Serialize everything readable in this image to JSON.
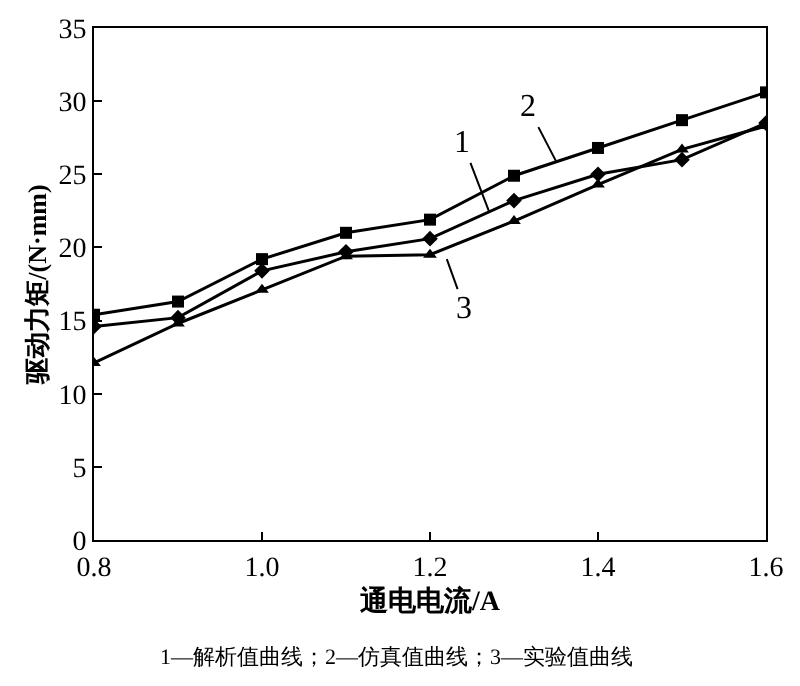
{
  "chart_data": {
    "type": "line",
    "xlabel": "通电电流/A",
    "ylabel": "驱动力矩/(N·mm)",
    "x": [
      0.8,
      0.9,
      1.0,
      1.1,
      1.2,
      1.3,
      1.4,
      1.5,
      1.6
    ],
    "series": [
      {
        "color": "#000000",
        "marker": "diamond",
        "values": [
          14.6,
          15.2,
          18.4,
          19.7,
          20.6,
          23.2,
          25.0,
          26.0,
          28.5
        ]
      },
      {
        "color": "#000000",
        "marker": "square",
        "values": [
          15.4,
          16.3,
          19.2,
          21.0,
          21.9,
          24.9,
          26.8,
          28.7,
          30.6
        ]
      },
      {
        "color": "#000000",
        "marker": "triangle",
        "values": [
          12.1,
          14.8,
          17.1,
          19.4,
          19.5,
          21.8,
          24.3,
          26.7,
          28.3
        ]
      }
    ],
    "xlim": [
      0.8,
      1.6
    ],
    "xticks": [
      {
        "value": 0.8,
        "label": "0.8"
      },
      {
        "value": 1.0,
        "label": "1.0"
      },
      {
        "value": 1.2,
        "label": "1.2"
      },
      {
        "value": 1.4,
        "label": "1.4"
      },
      {
        "value": 1.6,
        "label": "1.6"
      }
    ],
    "ylim": [
      0,
      35
    ],
    "yticks": [
      0,
      5,
      10,
      15,
      20,
      25,
      30,
      35
    ],
    "line_style": "solid",
    "annotations": [
      {
        "text": "1",
        "x": 1.27,
        "y": 22.5
      },
      {
        "text": "2",
        "x": 1.35,
        "y": 25.9
      },
      {
        "text": "3",
        "x": 1.22,
        "y": 19.2
      },
      "1—解析值曲线；2—仿真值曲线；3—实验值曲线"
    ]
  }
}
